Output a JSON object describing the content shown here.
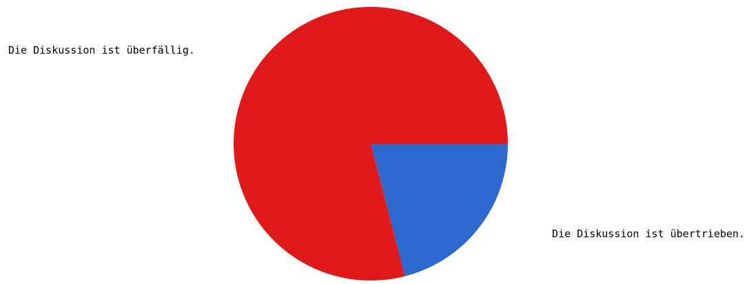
{
  "chart_data": {
    "type": "pie",
    "title": "",
    "categories": [
      "Die Diskussion ist überfällig.",
      "Die Diskussion ist übertrieben."
    ],
    "values": [
      79,
      21
    ],
    "colors": [
      "#e01a1a",
      "#2b69cf"
    ],
    "legend": "none",
    "labels_placement": "outside"
  }
}
